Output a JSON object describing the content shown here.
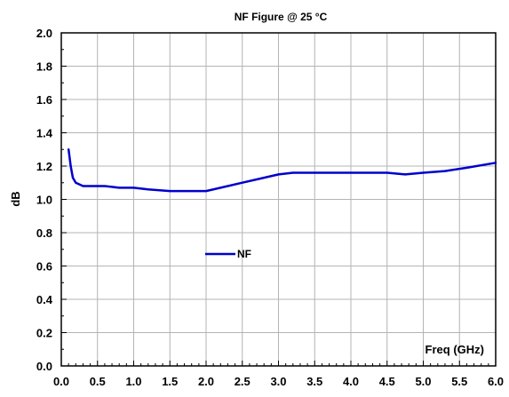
{
  "chart_data": {
    "type": "line",
    "title": "NF Figure @ 25 °C",
    "xlabel": "Freq (GHz)",
    "ylabel": "dB",
    "xlim": [
      0.0,
      6.0
    ],
    "ylim": [
      0.0,
      2.0
    ],
    "x_ticks": [
      "0.0",
      "0.5",
      "1.0",
      "1.5",
      "2.0",
      "2.5",
      "3.0",
      "3.5",
      "4.0",
      "4.5",
      "5.0",
      "5.5",
      "6.0"
    ],
    "y_ticks": [
      "0.0",
      "0.2",
      "0.4",
      "0.6",
      "0.8",
      "1.0",
      "1.2",
      "1.4",
      "1.6",
      "1.8",
      "2.0"
    ],
    "grid": true,
    "legend_position": "center-left",
    "series": [
      {
        "name": "NF",
        "color": "#0000cc",
        "x": [
          0.1,
          0.13,
          0.16,
          0.2,
          0.25,
          0.3,
          0.4,
          0.6,
          0.8,
          1.0,
          1.2,
          1.5,
          1.8,
          2.0,
          2.2,
          2.5,
          2.8,
          3.0,
          3.2,
          3.5,
          4.0,
          4.5,
          4.75,
          5.0,
          5.3,
          5.6,
          6.0
        ],
        "y": [
          1.3,
          1.2,
          1.13,
          1.1,
          1.09,
          1.08,
          1.08,
          1.08,
          1.07,
          1.07,
          1.06,
          1.05,
          1.05,
          1.05,
          1.07,
          1.1,
          1.13,
          1.15,
          1.16,
          1.16,
          1.16,
          1.16,
          1.15,
          1.16,
          1.17,
          1.19,
          1.22
        ]
      }
    ]
  }
}
